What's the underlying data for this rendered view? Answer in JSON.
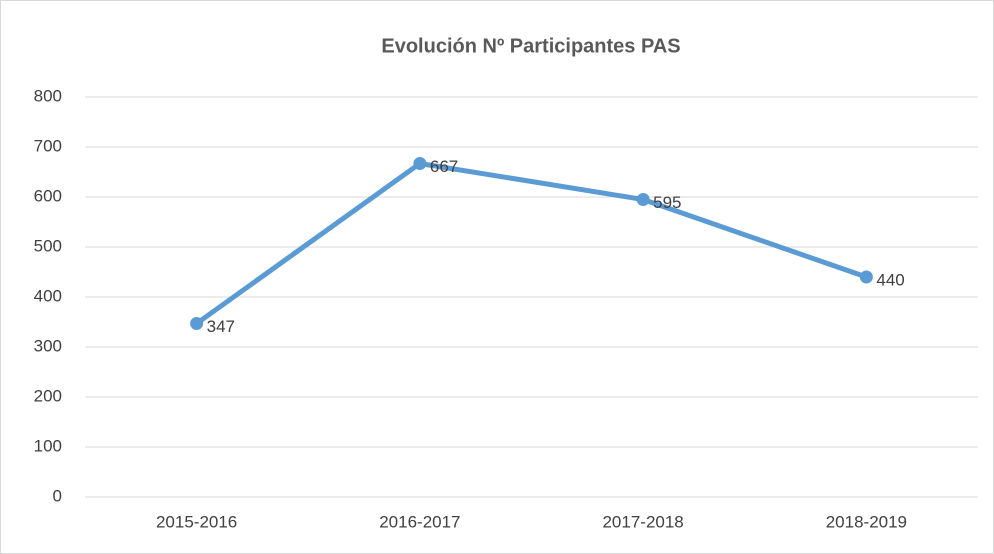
{
  "chart_data": {
    "type": "line",
    "title": "Evolución Nº Participantes PAS",
    "categories": [
      "2015-2016",
      "2016-2017",
      "2017-2018",
      "2018-2019"
    ],
    "values": [
      347,
      667,
      595,
      440
    ],
    "color": "#5b9bd5",
    "ylim": [
      0,
      800
    ],
    "yticks": [
      0,
      100,
      200,
      300,
      400,
      500,
      600,
      700,
      800
    ],
    "grid": true
  }
}
